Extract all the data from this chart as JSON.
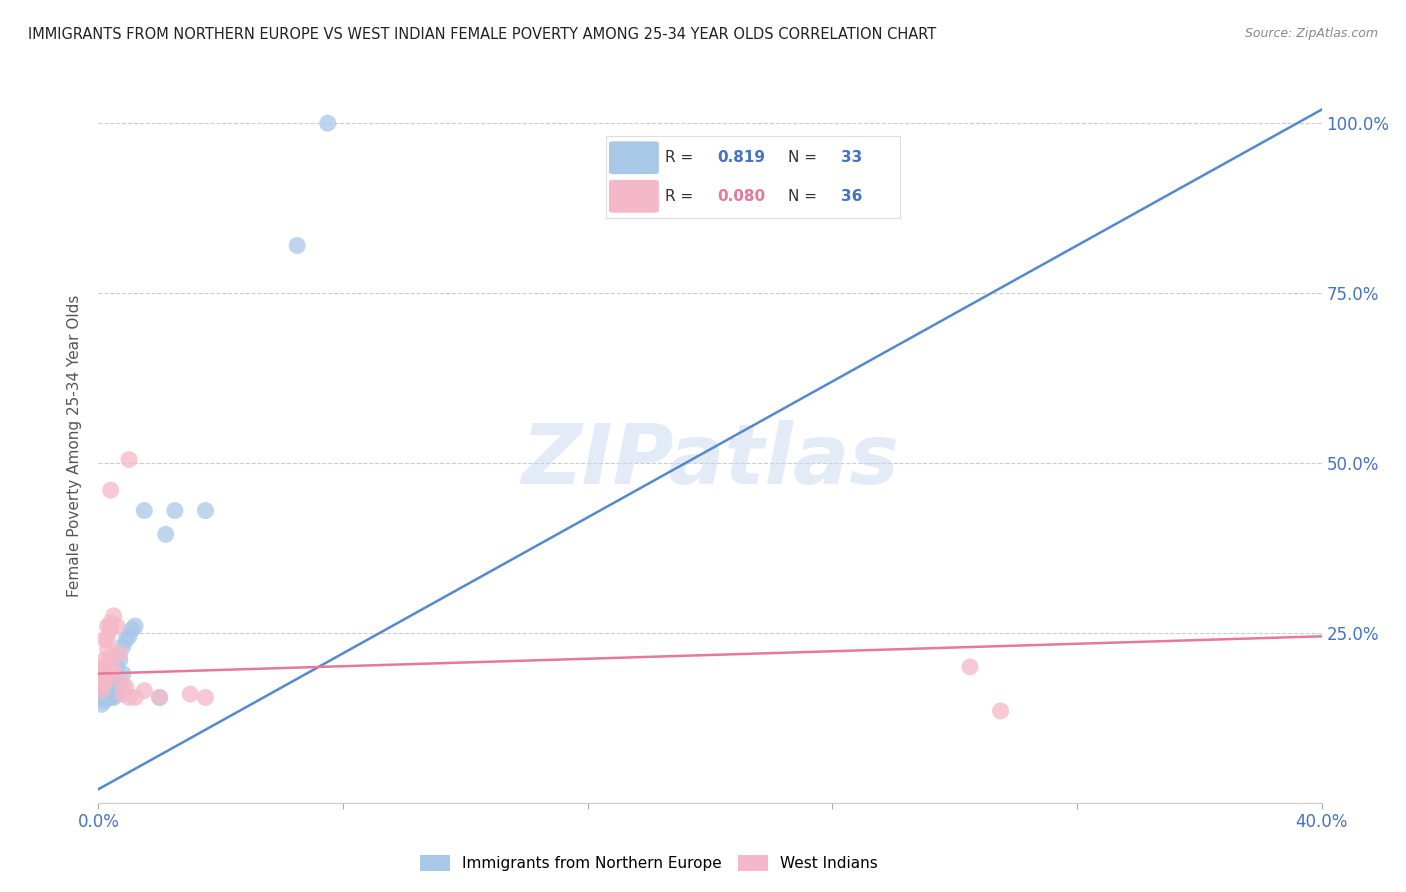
{
  "title": "IMMIGRANTS FROM NORTHERN EUROPE VS WEST INDIAN FEMALE POVERTY AMONG 25-34 YEAR OLDS CORRELATION CHART",
  "source": "Source: ZipAtlas.com",
  "ylabel": "Female Poverty Among 25-34 Year Olds",
  "xlim": [
    0.0,
    0.4
  ],
  "ylim": [
    0.0,
    1.05
  ],
  "xticks": [
    0.0,
    0.08,
    0.16,
    0.24,
    0.32,
    0.4
  ],
  "yticks": [
    0.0,
    0.25,
    0.5,
    0.75,
    1.0
  ],
  "background_color": "#ffffff",
  "watermark": "ZIPatlas",
  "legend_r_blue": "0.819",
  "legend_n_blue": "33",
  "legend_r_pink": "0.080",
  "legend_n_pink": "36",
  "blue_color": "#a8c8e8",
  "pink_color": "#f4b8c8",
  "blue_line_color": "#5588cc",
  "pink_line_color": "#e87898",
  "blue_scatter": [
    [
      0.001,
      0.155
    ],
    [
      0.001,
      0.145
    ],
    [
      0.001,
      0.16
    ],
    [
      0.002,
      0.165
    ],
    [
      0.002,
      0.155
    ],
    [
      0.002,
      0.15
    ],
    [
      0.003,
      0.17
    ],
    [
      0.003,
      0.16
    ],
    [
      0.003,
      0.155
    ],
    [
      0.004,
      0.175
    ],
    [
      0.004,
      0.16
    ],
    [
      0.004,
      0.155
    ],
    [
      0.005,
      0.175
    ],
    [
      0.005,
      0.165
    ],
    [
      0.005,
      0.155
    ],
    [
      0.006,
      0.2
    ],
    [
      0.006,
      0.17
    ],
    [
      0.006,
      0.16
    ],
    [
      0.007,
      0.21
    ],
    [
      0.007,
      0.175
    ],
    [
      0.008,
      0.23
    ],
    [
      0.008,
      0.19
    ],
    [
      0.009,
      0.24
    ],
    [
      0.01,
      0.245
    ],
    [
      0.011,
      0.255
    ],
    [
      0.012,
      0.26
    ],
    [
      0.015,
      0.43
    ],
    [
      0.02,
      0.155
    ],
    [
      0.022,
      0.395
    ],
    [
      0.025,
      0.43
    ],
    [
      0.035,
      0.43
    ],
    [
      0.065,
      0.82
    ],
    [
      0.075,
      1.0
    ]
  ],
  "pink_scatter": [
    [
      0.001,
      0.195
    ],
    [
      0.001,
      0.185
    ],
    [
      0.001,
      0.175
    ],
    [
      0.001,
      0.165
    ],
    [
      0.001,
      0.195
    ],
    [
      0.002,
      0.2
    ],
    [
      0.002,
      0.21
    ],
    [
      0.002,
      0.24
    ],
    [
      0.002,
      0.185
    ],
    [
      0.002,
      0.175
    ],
    [
      0.003,
      0.26
    ],
    [
      0.003,
      0.24
    ],
    [
      0.003,
      0.225
    ],
    [
      0.003,
      0.195
    ],
    [
      0.003,
      0.185
    ],
    [
      0.004,
      0.265
    ],
    [
      0.004,
      0.255
    ],
    [
      0.004,
      0.215
    ],
    [
      0.004,
      0.195
    ],
    [
      0.004,
      0.46
    ],
    [
      0.005,
      0.275
    ],
    [
      0.005,
      0.195
    ],
    [
      0.006,
      0.26
    ],
    [
      0.007,
      0.22
    ],
    [
      0.008,
      0.175
    ],
    [
      0.008,
      0.16
    ],
    [
      0.009,
      0.17
    ],
    [
      0.01,
      0.155
    ],
    [
      0.01,
      0.505
    ],
    [
      0.012,
      0.155
    ],
    [
      0.015,
      0.165
    ],
    [
      0.02,
      0.155
    ],
    [
      0.03,
      0.16
    ],
    [
      0.035,
      0.155
    ],
    [
      0.285,
      0.2
    ],
    [
      0.295,
      0.135
    ]
  ],
  "blue_line_x": [
    0.0,
    0.4
  ],
  "blue_line_y": [
    0.02,
    1.02
  ],
  "pink_line_x": [
    0.0,
    0.4
  ],
  "pink_line_y": [
    0.19,
    0.245
  ]
}
